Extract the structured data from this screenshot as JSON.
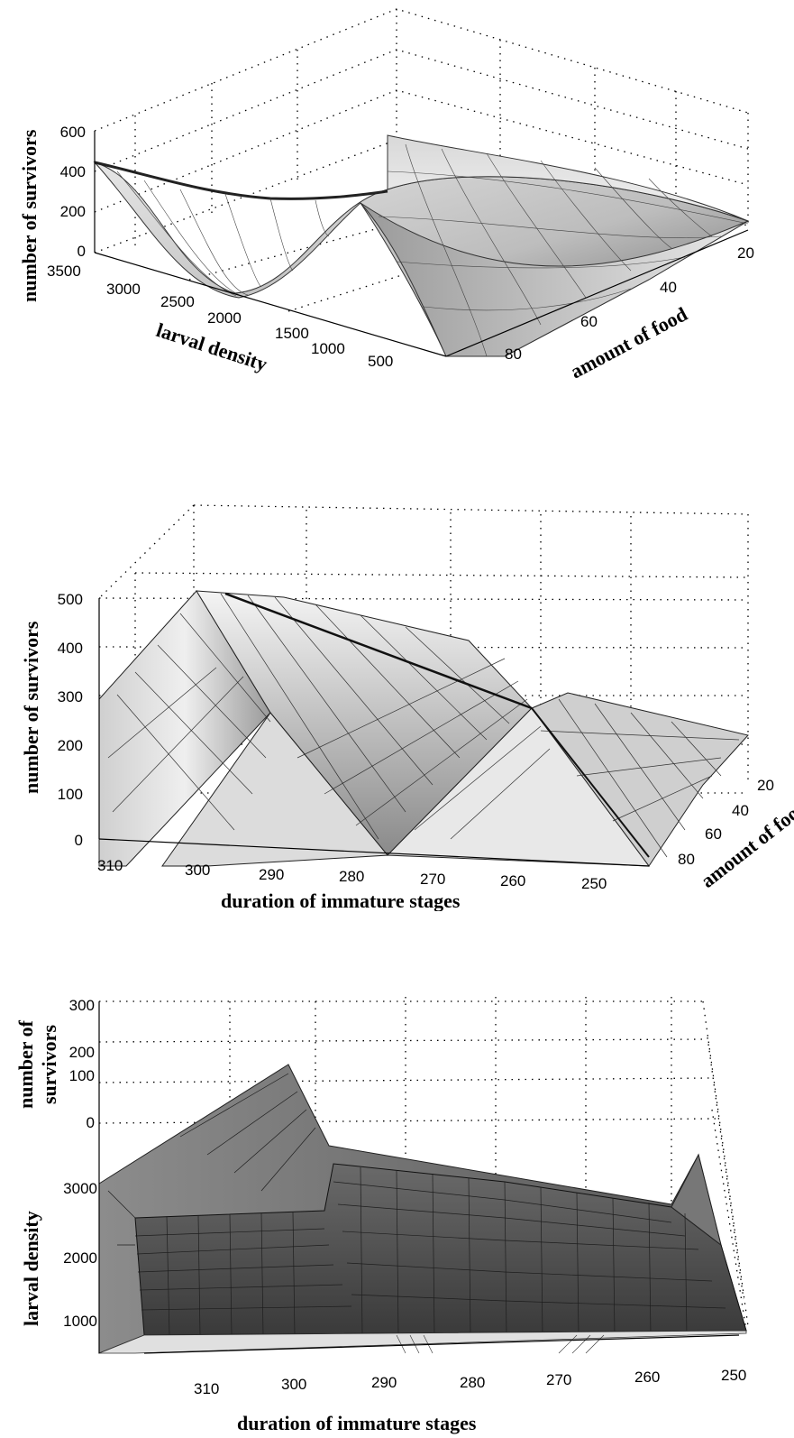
{
  "chart_data": [
    {
      "type": "surface",
      "zlabel": "number of survivors",
      "xlabel": "larval density",
      "ylabel": "amount of food",
      "z_ticks": [
        "0",
        "200",
        "400",
        "600"
      ],
      "x_ticks": [
        "3500",
        "3000",
        "2500",
        "2000",
        "1500",
        "1000",
        "500"
      ],
      "y_ticks": [
        "20",
        "40",
        "60",
        "80"
      ],
      "zlim": [
        0,
        600
      ],
      "grid": true,
      "surface_shade": "light-gray",
      "profile_food_80": {
        "x": [
          3500,
          3000,
          2500,
          2000,
          1500,
          1000,
          500
        ],
        "z": [
          450,
          380,
          120,
          20,
          260,
          430,
          350
        ]
      }
    },
    {
      "type": "surface",
      "zlabel": "number of survivors",
      "xlabel": "duration of immature stages",
      "ylabel": "amount of food",
      "z_ticks": [
        "0",
        "100",
        "200",
        "300",
        "400",
        "500"
      ],
      "x_ticks": [
        "310",
        "300",
        "290",
        "280",
        "270",
        "260",
        "250"
      ],
      "y_ticks": [
        "20",
        "40",
        "60",
        "80"
      ],
      "zlim": [
        0,
        500
      ],
      "grid": true,
      "surface_shade": "light-gray",
      "profile": {
        "x": [
          310,
          305,
          300,
          290,
          280,
          270,
          260,
          255,
          250
        ],
        "z": [
          270,
          500,
          150,
          500,
          0,
          420,
          240,
          250,
          0
        ]
      }
    },
    {
      "type": "surface",
      "zlabel": "number of survivors",
      "ylabel": "larval density",
      "xlabel": "duration of immature stages",
      "z_ticks": [
        "0",
        "100",
        "200",
        "300"
      ],
      "y_ticks": [
        "1000",
        "2000",
        "3000"
      ],
      "x_ticks": [
        "310",
        "300",
        "290",
        "280",
        "270",
        "260",
        "250"
      ],
      "zlim": [
        0,
        300
      ],
      "grid": true,
      "surface_shade": "dark-gray",
      "profile": {
        "x": [
          315,
          305,
          300,
          290,
          280,
          270,
          260,
          255,
          250
        ],
        "z": [
          150,
          280,
          200,
          230,
          190,
          160,
          80,
          230,
          40
        ]
      }
    }
  ]
}
